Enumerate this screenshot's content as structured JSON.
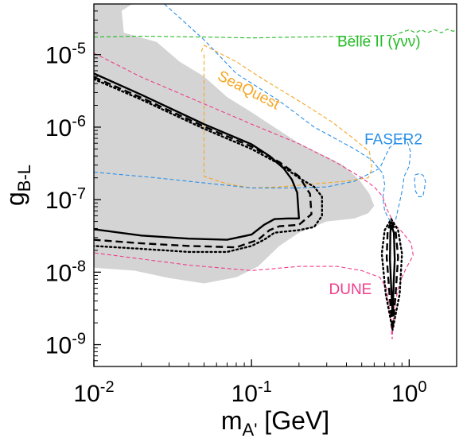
{
  "chart_data": {
    "type": "line",
    "x_scale": "log",
    "y_scale": "log",
    "xlim": [
      0.01,
      2.0
    ],
    "ylim": [
      5e-10,
      5e-05
    ],
    "x_ticks": [
      {
        "value": 0.01,
        "base": "10",
        "exp": "-2"
      },
      {
        "value": 0.1,
        "base": "10",
        "exp": "-1"
      },
      {
        "value": 1.0,
        "base": "10",
        "exp": "0"
      }
    ],
    "y_ticks": [
      {
        "value": 1e-09,
        "base": "10",
        "exp": "-9"
      },
      {
        "value": 1e-08,
        "base": "10",
        "exp": "-8"
      },
      {
        "value": 1e-07,
        "base": "10",
        "exp": "-7"
      },
      {
        "value": 1e-06,
        "base": "10",
        "exp": "-6"
      },
      {
        "value": 1e-05,
        "base": "10",
        "exp": "-5"
      }
    ],
    "xlabel": {
      "main": "m",
      "sub": "A'",
      "unit": " [GeV]"
    },
    "ylabel": {
      "main": "g",
      "sub": "B-L"
    },
    "grid": false,
    "excluded_region": {
      "color": "#d4d4d4",
      "polygons": [
        [
          [
            0.01,
            5e-05
          ],
          [
            0.0175,
            5e-05
          ],
          [
            0.015,
            4e-05
          ],
          [
            0.0155,
            2e-05
          ],
          [
            0.025,
            1.5e-05
          ],
          [
            0.035,
            8e-06
          ],
          [
            0.05,
            5e-06
          ],
          [
            0.07,
            2.6e-06
          ],
          [
            0.1,
            1.6e-06
          ],
          [
            0.15,
            9e-07
          ],
          [
            0.2,
            6e-07
          ],
          [
            0.28,
            4.2e-07
          ],
          [
            0.38,
            3e-07
          ],
          [
            0.48,
            1.9e-07
          ],
          [
            0.56,
            1.2e-07
          ],
          [
            0.6,
            8.2e-08
          ],
          [
            0.55,
            6.5e-08
          ],
          [
            0.45,
            5.5e-08
          ],
          [
            0.3,
            5e-08
          ],
          [
            0.2,
            3.5e-08
          ],
          [
            0.15,
            2.3e-08
          ],
          [
            0.13,
            1.7e-08
          ],
          [
            0.11,
            1.2e-08
          ],
          [
            0.08,
            8.5e-09
          ],
          [
            0.05,
            7e-09
          ],
          [
            0.03,
            8.3e-09
          ],
          [
            0.018,
            1.05e-08
          ],
          [
            0.01,
            1.15e-08
          ]
        ]
      ]
    },
    "series": [
      {
        "name": "Belle II (γνν)",
        "color": "#22bb22",
        "style": "dashed",
        "points": [
          [
            0.01,
            1.75e-05
          ],
          [
            0.02,
            1.8e-05
          ],
          [
            0.05,
            1.75e-05
          ],
          [
            0.1,
            1.7e-05
          ],
          [
            0.2,
            1.75e-05
          ],
          [
            0.5,
            1.8e-05
          ],
          [
            0.8,
            1.85e-05
          ],
          [
            0.88,
            2e-05
          ],
          [
            1.0,
            2.2e-05
          ],
          [
            1.1,
            2e-05
          ],
          [
            1.2,
            2.2e-05
          ],
          [
            1.3,
            2e-05
          ],
          [
            1.45,
            2.2e-05
          ],
          [
            1.6,
            2e-05
          ],
          [
            1.75,
            2.25e-05
          ],
          [
            1.9,
            2.1e-05
          ],
          [
            2.0,
            2.2e-05
          ]
        ]
      },
      {
        "name": "SeaQuest",
        "color": "#f5a623",
        "style": "dashed",
        "points": [
          [
            0.048,
            1.1e-05
          ],
          [
            0.05,
            1.35e-05
          ],
          [
            0.08,
            8e-06
          ],
          [
            0.12,
            4.5e-06
          ],
          [
            0.2,
            2.3e-06
          ],
          [
            0.32,
            1.2e-06
          ],
          [
            0.45,
            6.8e-07
          ],
          [
            0.56,
            4.6e-07
          ],
          [
            0.58,
            2.7e-07
          ],
          [
            0.55,
            2e-07
          ],
          [
            0.4,
            1.8e-07
          ],
          [
            0.25,
            1.65e-07
          ],
          [
            0.15,
            1.5e-07
          ],
          [
            0.1,
            1.45e-07
          ],
          [
            0.07,
            1.65e-07
          ],
          [
            0.05,
            2.1e-07
          ],
          [
            0.05,
            1.1e-05
          ]
        ]
      },
      {
        "name": "FASER2",
        "color": "#2b8fe8",
        "style": "dashed",
        "points": [
          [
            0.028,
            5e-05
          ],
          [
            0.05,
            1.6e-05
          ],
          [
            0.08,
            5.5e-06
          ],
          [
            0.15,
            2.3e-06
          ],
          [
            0.25,
            1e-06
          ],
          [
            0.45,
            5e-07
          ],
          [
            0.58,
            3.5e-07
          ],
          [
            0.68,
            2.3e-07
          ],
          [
            0.7,
            1.6e-07
          ],
          [
            0.68,
            1.05e-07
          ],
          [
            0.7,
            7e-08
          ],
          [
            0.74,
            5.5e-08
          ],
          [
            0.78,
            4.6e-08
          ],
          [
            0.82,
            5.2e-08
          ],
          [
            0.9,
            1.3e-07
          ],
          [
            0.93,
            2.1e-07
          ],
          [
            1.0,
            2.9e-07
          ],
          [
            1.02,
            4.6e-07
          ],
          [
            0.97,
            6.5e-07
          ],
          [
            0.9,
            7.3e-07
          ],
          [
            0.75,
            5.2e-07
          ],
          [
            0.65,
            2.7e-07
          ],
          [
            0.45,
            1.8e-07
          ],
          [
            0.3,
            1.5e-07
          ],
          [
            0.2,
            1.45e-07
          ],
          [
            0.1,
            1.45e-07
          ],
          [
            0.05,
            1.7e-07
          ],
          [
            0.025,
            2e-07
          ],
          [
            0.01,
            2.4e-07
          ]
        ]
      },
      {
        "name": "FASER2",
        "color": "#2b8fe8",
        "style": "dashed",
        "points": [
          [
            1.09,
            2.2e-07
          ],
          [
            1.17,
            2.3e-07
          ],
          [
            1.23,
            2.15e-07
          ],
          [
            1.27,
            1.8e-07
          ],
          [
            1.25,
            1.4e-07
          ],
          [
            1.22,
            1.1e-07
          ],
          [
            1.15,
            1.1e-07
          ],
          [
            1.1,
            1.3e-07
          ],
          [
            1.08,
            1.8e-07
          ],
          [
            1.09,
            2.2e-07
          ]
        ]
      },
      {
        "name": "DUNE",
        "color": "#f03c8a",
        "style": "dashed",
        "points": [
          [
            0.01,
            1.05e-05
          ],
          [
            0.02,
            4.9e-06
          ],
          [
            0.05,
            2.1e-06
          ],
          [
            0.1,
            1.1e-06
          ],
          [
            0.2,
            5.9e-07
          ],
          [
            0.35,
            3.2e-07
          ],
          [
            0.5,
            2e-07
          ],
          [
            0.6,
            1.5e-07
          ],
          [
            0.68,
            1.1e-07
          ],
          [
            0.72,
            7.5e-08
          ],
          [
            0.8,
            4.7e-08
          ],
          [
            0.9,
            3.6e-08
          ],
          [
            1.03,
            2.5e-08
          ],
          [
            1.06,
            1.7e-08
          ],
          [
            0.96,
            1.15e-08
          ],
          [
            0.9,
            8.5e-09
          ],
          [
            0.85,
            6e-09
          ],
          [
            0.8,
            3e-09
          ],
          [
            0.78,
            1.2e-09
          ],
          [
            0.75,
            3e-09
          ],
          [
            0.72,
            6e-09
          ],
          [
            0.65,
            8.5e-09
          ],
          [
            0.5,
            1.05e-08
          ],
          [
            0.35,
            1.2e-08
          ],
          [
            0.2,
            1.2e-08
          ],
          [
            0.1,
            1.05e-08
          ],
          [
            0.04,
            1.25e-08
          ],
          [
            0.01,
            1.85e-08
          ]
        ]
      },
      {
        "name": "",
        "color": "#000000",
        "style": "solid",
        "points": [
          [
            0.01,
            5.5e-06
          ],
          [
            0.02,
            2.8e-06
          ],
          [
            0.05,
            1.1e-06
          ],
          [
            0.1,
            5.8e-07
          ],
          [
            0.13,
            4e-07
          ],
          [
            0.16,
            2.7e-07
          ],
          [
            0.18,
            1.9e-07
          ],
          [
            0.195,
            1.25e-07
          ],
          [
            0.2,
            5.5e-08
          ],
          [
            0.17,
            5.5e-08
          ],
          [
            0.14,
            5.4e-08
          ],
          [
            0.12,
            4.5e-08
          ],
          [
            0.1,
            3.3e-08
          ],
          [
            0.07,
            2.8e-08
          ],
          [
            0.04,
            2.9e-08
          ],
          [
            0.02,
            3.2e-08
          ],
          [
            0.01,
            3.9e-08
          ]
        ]
      },
      {
        "name": "",
        "color": "#000000",
        "style": "dashed",
        "points": [
          [
            0.01,
            4.9e-06
          ],
          [
            0.02,
            2.55e-06
          ],
          [
            0.05,
            1.02e-06
          ],
          [
            0.1,
            5.4e-07
          ],
          [
            0.15,
            3.3e-07
          ],
          [
            0.2,
            2.1e-07
          ],
          [
            0.235,
            1.2e-07
          ],
          [
            0.24,
            6.3e-08
          ],
          [
            0.2,
            4.5e-08
          ],
          [
            0.15,
            4.3e-08
          ],
          [
            0.13,
            3.8e-08
          ],
          [
            0.11,
            2.8e-08
          ],
          [
            0.08,
            2.2e-08
          ],
          [
            0.04,
            2.3e-08
          ],
          [
            0.02,
            2.5e-08
          ],
          [
            0.01,
            2.8e-08
          ]
        ]
      },
      {
        "name": "",
        "color": "#000000",
        "style": "dotted",
        "points": [
          [
            0.01,
            4.6e-06
          ],
          [
            0.02,
            2.4e-06
          ],
          [
            0.05,
            9.5e-07
          ],
          [
            0.1,
            5e-07
          ],
          [
            0.15,
            3.1e-07
          ],
          [
            0.2,
            2e-07
          ],
          [
            0.25,
            1.5e-07
          ],
          [
            0.28,
            1.1e-07
          ],
          [
            0.28,
            6e-08
          ],
          [
            0.25,
            4.2e-08
          ],
          [
            0.2,
            3.8e-08
          ],
          [
            0.14,
            3.5e-08
          ],
          [
            0.12,
            2.8e-08
          ],
          [
            0.1,
            2.3e-08
          ],
          [
            0.07,
            1.9e-08
          ],
          [
            0.04,
            1.9e-08
          ],
          [
            0.02,
            2.1e-08
          ],
          [
            0.01,
            2.3e-08
          ]
        ]
      },
      {
        "name": "",
        "color": "#000000",
        "style": "solid",
        "points": [
          [
            0.77,
            4.5e-08
          ],
          [
            0.8,
            3.5e-08
          ],
          [
            0.81,
            1.5e-08
          ],
          [
            0.795,
            6e-09
          ],
          [
            0.785,
            2.5e-09
          ],
          [
            0.77,
            6e-09
          ],
          [
            0.755,
            1.5e-08
          ],
          [
            0.76,
            3.5e-08
          ],
          [
            0.77,
            4.5e-08
          ]
        ]
      },
      {
        "name": "",
        "color": "#000000",
        "style": "dashed",
        "points": [
          [
            0.77,
            5e-08
          ],
          [
            0.82,
            3.7e-08
          ],
          [
            0.85,
            1.6e-08
          ],
          [
            0.82,
            5e-09
          ],
          [
            0.785,
            1.6e-09
          ],
          [
            0.75,
            5e-09
          ],
          [
            0.72,
            1.6e-08
          ],
          [
            0.73,
            3.7e-08
          ],
          [
            0.77,
            5e-08
          ]
        ]
      },
      {
        "name": "",
        "color": "#000000",
        "style": "dotted",
        "points": [
          [
            0.77,
            5.4e-08
          ],
          [
            0.85,
            3.8e-08
          ],
          [
            0.9,
            1.8e-08
          ],
          [
            0.87,
            5e-09
          ],
          [
            0.785,
            1.6e-09
          ],
          [
            0.71,
            5e-09
          ],
          [
            0.67,
            1.8e-08
          ],
          [
            0.7,
            3.8e-08
          ],
          [
            0.77,
            5.4e-08
          ]
        ]
      }
    ],
    "annotations": [
      {
        "text": "Belle II (γνν)",
        "color": "#22bb22",
        "x": 0.35,
        "y": 1.3e-05,
        "rotate": 0
      },
      {
        "text": "SeaQuest",
        "color": "#f5a623",
        "x": 0.06,
        "y": 4.6e-06,
        "rotate": 27
      },
      {
        "text": "FASER2",
        "color": "#2b8fe8",
        "x": 0.52,
        "y": 5.8e-07,
        "rotate": 0
      },
      {
        "text": "DUNE",
        "color": "#f03c8a",
        "x": 0.31,
        "y": 5e-09,
        "rotate": 0
      }
    ]
  }
}
